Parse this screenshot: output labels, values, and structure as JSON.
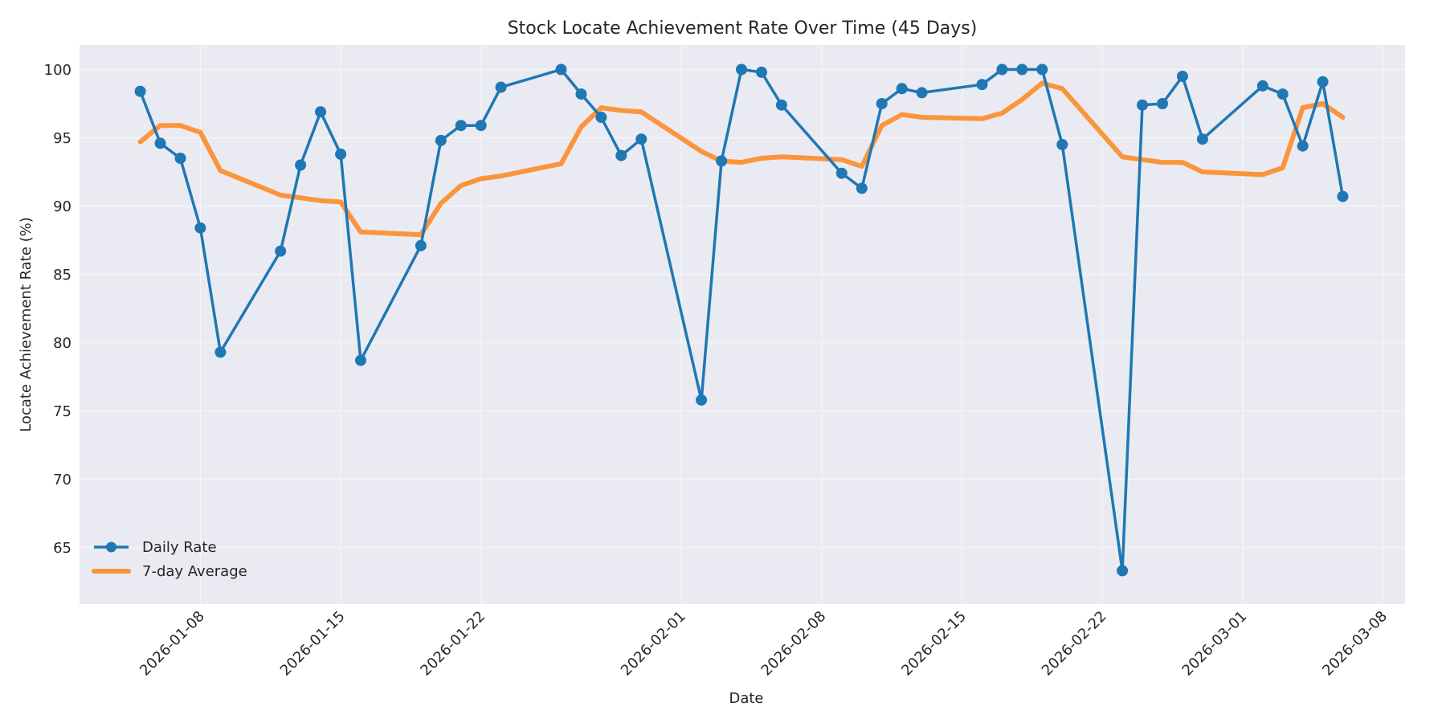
{
  "chart_data": {
    "type": "line",
    "title": "Stock Locate Achievement Rate Over Time (45 Days)",
    "xlabel": "Date",
    "ylabel": "Locate Achievement Rate (%)",
    "ylim": [
      61.5,
      101.8
    ],
    "xlim": [
      "2026-01-02",
      "2026-03-07"
    ],
    "grid": true,
    "legend_position": "lower left",
    "yticks": [
      65,
      70,
      75,
      80,
      85,
      90,
      95,
      100
    ],
    "xticks": [
      "2026-01-08",
      "2026-01-15",
      "2026-01-22",
      "2026-02-01",
      "2026-02-08",
      "2026-02-15",
      "2026-02-22",
      "2026-03-01",
      "2026-03-08"
    ],
    "x": [
      "2026-01-05",
      "2026-01-06",
      "2026-01-07",
      "2026-01-08",
      "2026-01-09",
      "2026-01-12",
      "2026-01-13",
      "2026-01-14",
      "2026-01-15",
      "2026-01-16",
      "2026-01-19",
      "2026-01-20",
      "2026-01-21",
      "2026-01-22",
      "2026-01-23",
      "2026-01-26",
      "2026-01-27",
      "2026-01-28",
      "2026-01-29",
      "2026-01-30",
      "2026-02-02",
      "2026-02-03",
      "2026-02-04",
      "2026-02-05",
      "2026-02-06",
      "2026-02-09",
      "2026-02-10",
      "2026-02-11",
      "2026-02-12",
      "2026-02-13",
      "2026-02-16",
      "2026-02-17",
      "2026-02-18",
      "2026-02-19",
      "2026-02-20",
      "2026-02-23",
      "2026-02-24",
      "2026-02-25",
      "2026-02-26",
      "2026-02-27",
      "2026-03-02",
      "2026-03-03",
      "2026-03-04",
      "2026-03-05",
      "2026-03-06"
    ],
    "series": [
      {
        "name": "Daily Rate",
        "color": "#1f77b4",
        "marker": "circle",
        "values": [
          98.4,
          94.6,
          93.5,
          88.4,
          79.3,
          86.7,
          93.0,
          96.9,
          93.8,
          78.7,
          87.1,
          94.8,
          95.9,
          95.9,
          98.7,
          100.0,
          98.2,
          96.5,
          93.7,
          94.9,
          75.8,
          93.3,
          100.0,
          99.8,
          97.4,
          92.4,
          91.3,
          97.5,
          98.6,
          98.3,
          98.9,
          100.0,
          100.0,
          100.0,
          94.5,
          63.3,
          97.4,
          97.5,
          99.5,
          94.9,
          98.8,
          98.2,
          94.4,
          99.1,
          90.7
        ]
      },
      {
        "name": "7-day Average",
        "color": "#ff7f0e",
        "marker": "none",
        "values": [
          94.7,
          95.9,
          95.9,
          95.4,
          92.6,
          90.8,
          90.6,
          90.4,
          90.3,
          88.1,
          87.9,
          90.2,
          91.5,
          92.0,
          92.2,
          93.1,
          95.8,
          97.2,
          97.0,
          96.9,
          94.0,
          93.3,
          93.2,
          93.5,
          93.6,
          93.4,
          92.9,
          95.9,
          96.7,
          96.5,
          96.4,
          96.8,
          97.8,
          99.0,
          98.6,
          93.6,
          93.4,
          93.2,
          93.2,
          92.5,
          92.3,
          92.8,
          97.2,
          97.5,
          96.5
        ]
      }
    ]
  },
  "colors": {
    "plot_background": "#eaeaf2",
    "grid": "#f5f5f8",
    "daily_rate": "#1f77b4",
    "seven_day_average": "#ff7f0e",
    "text": "#262626"
  },
  "legend": {
    "items": [
      {
        "label": "Daily Rate",
        "icon": "line-with-circle-marker"
      },
      {
        "label": "7-day Average",
        "icon": "thick-line"
      }
    ]
  }
}
